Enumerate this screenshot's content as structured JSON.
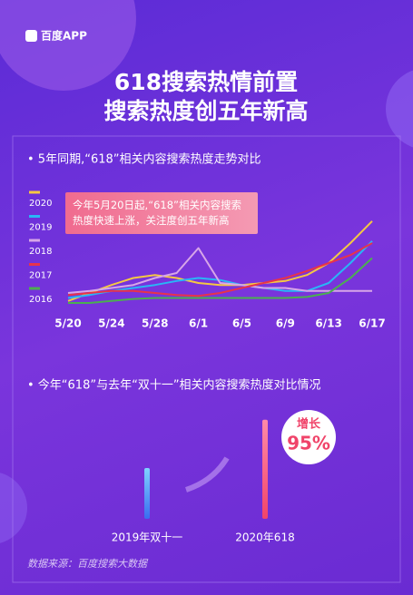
{
  "header": {
    "app": "百度APP",
    "title": [
      "618搜索热情前置",
      "搜索热度创五年新高"
    ]
  },
  "footer": {
    "source": "数据来源：百度搜索大数据"
  },
  "chart_data": [
    {
      "type": "line",
      "title": "• 5年同期,“618”相关内容搜索热度走势对比",
      "annotation": "今年5月20日起,“618”相关内容搜索热度快速上涨，关注度创五年新高",
      "categories": [
        "5/20",
        null,
        "5/24",
        null,
        "5/28",
        null,
        "6/1",
        null,
        "6/5",
        null,
        "6/9",
        null,
        "6/13",
        null,
        "6/17"
      ],
      "ylim": [
        0,
        100
      ],
      "series": [
        {
          "name": "2020",
          "color": "#f5c842",
          "values": [
            12,
            20,
            28,
            35,
            38,
            35,
            30,
            28,
            28,
            30,
            32,
            38,
            50,
            70,
            92
          ]
        },
        {
          "name": "2019",
          "color": "#29b6f6",
          "values": [
            15,
            18,
            22,
            25,
            28,
            32,
            35,
            33,
            28,
            25,
            22,
            22,
            30,
            50,
            72
          ]
        },
        {
          "name": "2018",
          "color": "#d7a6e8",
          "values": [
            20,
            22,
            25,
            28,
            35,
            40,
            65,
            30,
            28,
            25,
            25,
            22,
            22,
            22,
            22
          ]
        },
        {
          "name": "2017",
          "color": "#e8334a",
          "values": [
            18,
            20,
            22,
            22,
            20,
            18,
            17,
            20,
            25,
            30,
            35,
            42,
            50,
            58,
            70
          ]
        },
        {
          "name": "2016",
          "color": "#4caf50",
          "values": [
            10,
            10,
            12,
            14,
            15,
            15,
            15,
            15,
            15,
            15,
            15,
            16,
            20,
            35,
            55
          ]
        }
      ]
    },
    {
      "type": "bar",
      "title": "• 今年“618”与去年“双十一”相关内容搜索热度对比情况",
      "categories": [
        "2019年双十一",
        "2020年618"
      ],
      "values": [
        100,
        195
      ],
      "colors": [
        "url(#gb)",
        "url(#gr)"
      ],
      "ylim": [
        0,
        200
      ],
      "growth_label": "增长",
      "growth": "95%"
    }
  ]
}
